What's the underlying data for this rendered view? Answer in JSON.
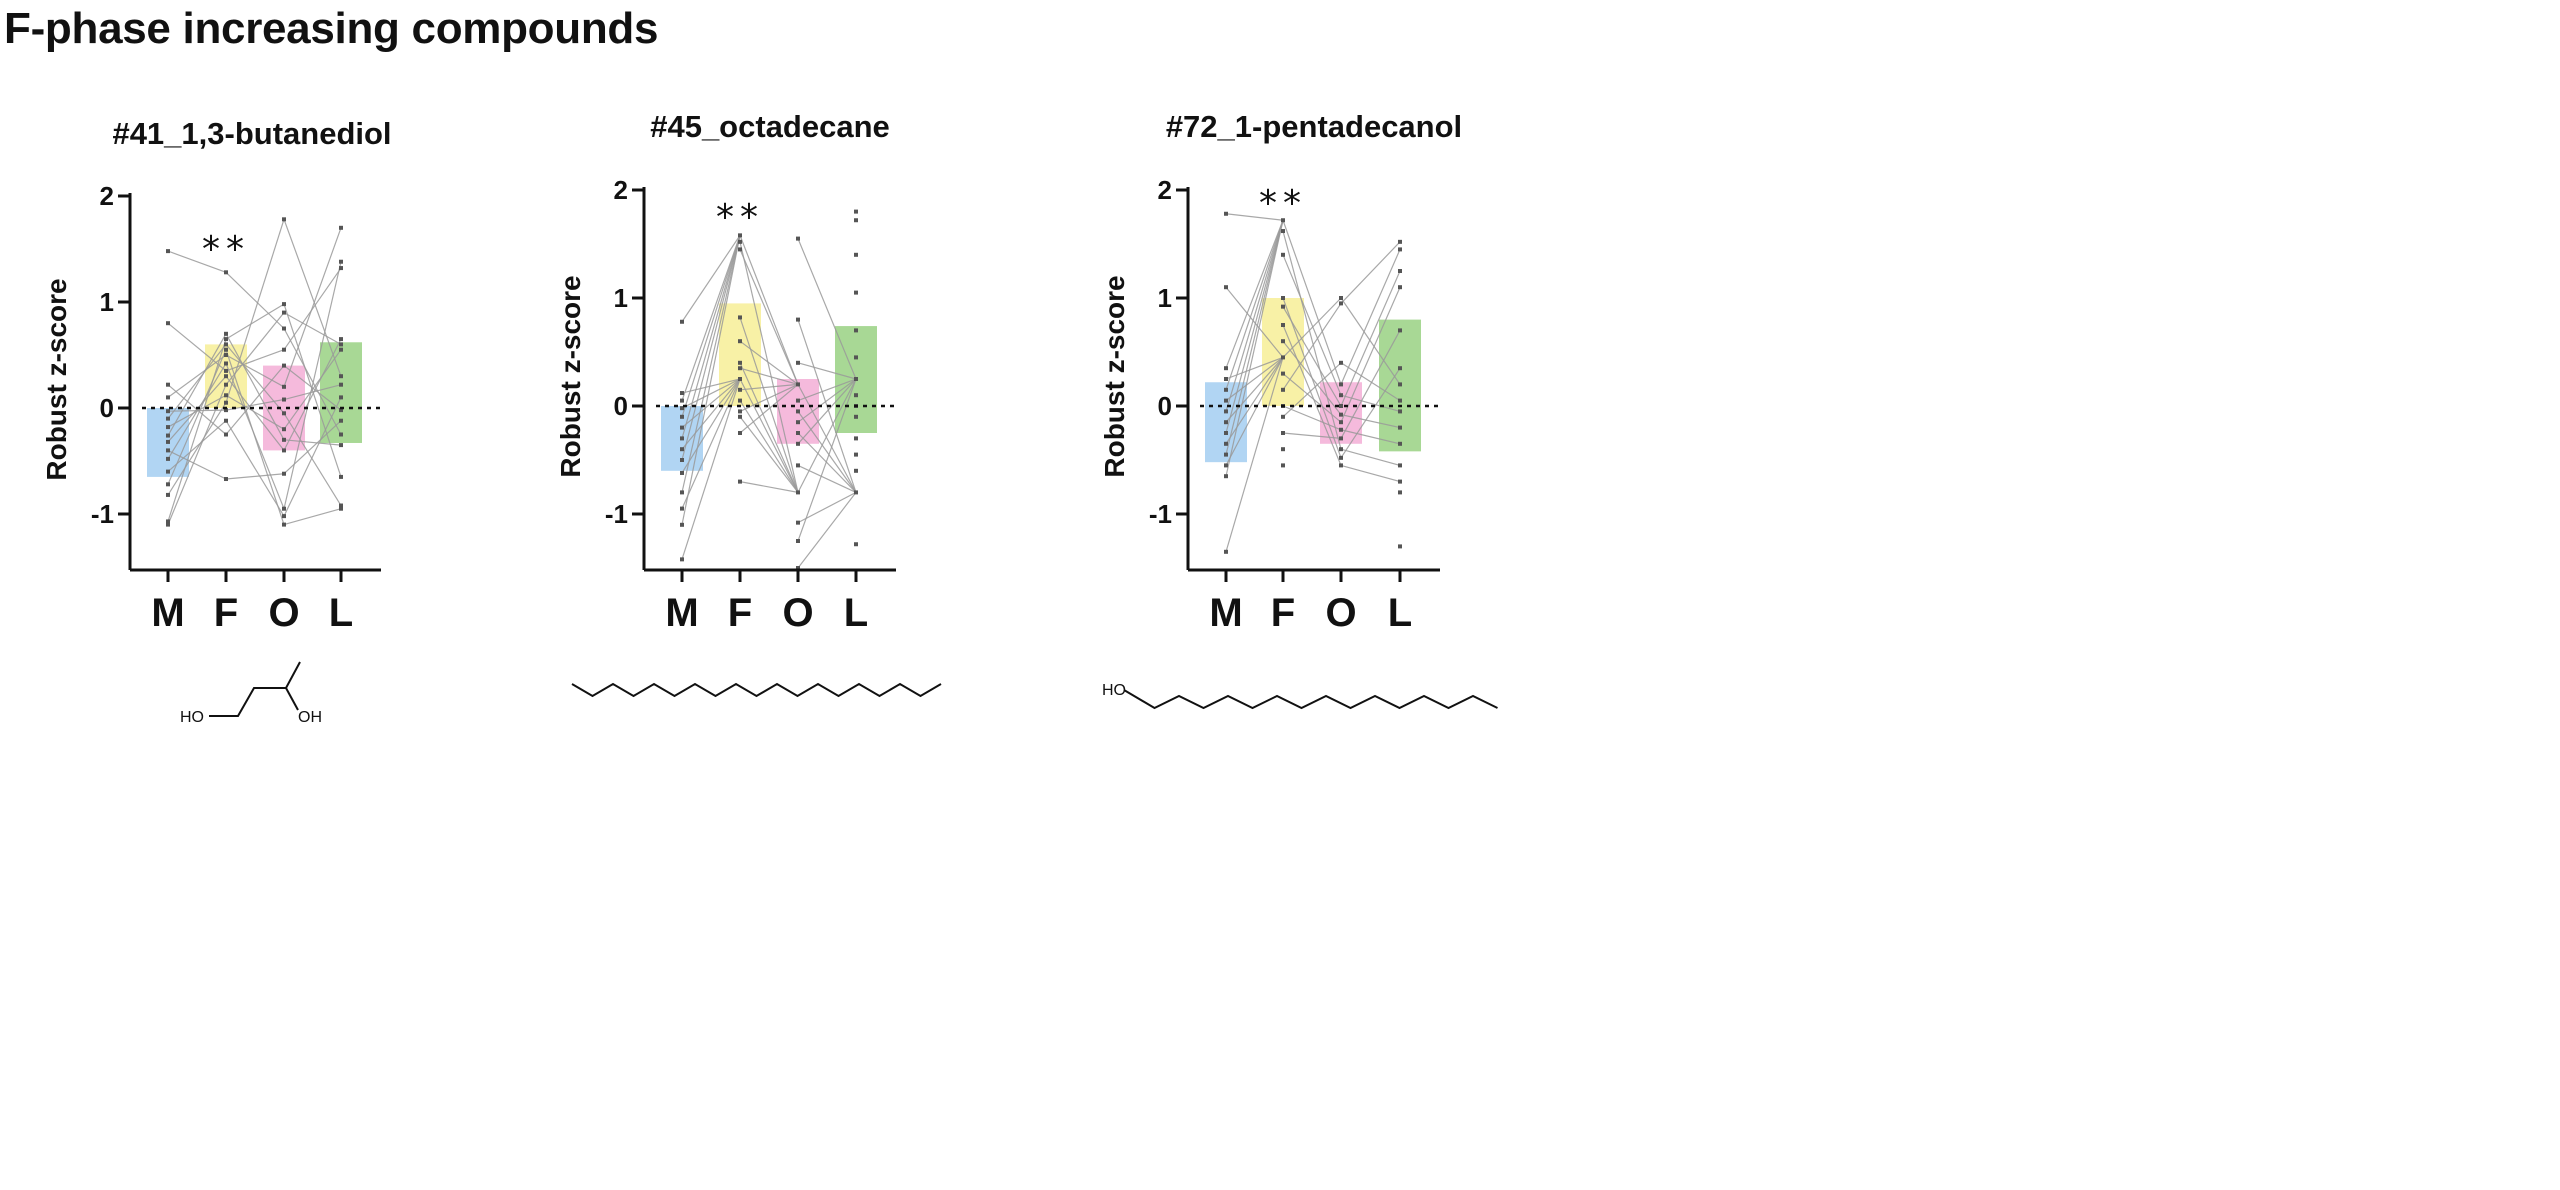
{
  "page": {
    "title": "F-phase increasing compounds"
  },
  "colors": {
    "M": "#a8d0f2",
    "F": "#f7ef9c",
    "O": "#f4b2d8",
    "L": "#9ed48a",
    "line": "#9a9a9a",
    "point": "#555555",
    "axis": "#111111"
  },
  "chart_data": [
    {
      "type": "bar",
      "title": "#41_1,3-butanediol",
      "ylabel": "Robust z-score",
      "ylim": [
        -1.5,
        2
      ],
      "yticks": [
        "2",
        "1",
        "0",
        "-1"
      ],
      "categories": [
        "M",
        "F",
        "O",
        "L"
      ],
      "bar_top": [
        0,
        0.6,
        0.4,
        0.62
      ],
      "bar_bottom": [
        -0.65,
        0,
        -0.4,
        -0.33
      ],
      "significance": {
        "category": "F",
        "label": "**",
        "y": 1.5
      },
      "points": {
        "M": [
          1.48,
          0.8,
          0.22,
          0.1,
          -0.03,
          -0.1,
          -0.18,
          -0.26,
          -0.32,
          -0.4,
          -0.48,
          -0.6,
          -0.72,
          -0.82,
          -1.07,
          -1.1
        ],
        "F": [
          1.28,
          0.7,
          0.65,
          0.6,
          0.55,
          0.5,
          0.42,
          0.35,
          0.3,
          0.22,
          0.12,
          0.05,
          -0.02,
          -0.12,
          -0.25,
          -0.67
        ],
        "O": [
          1.78,
          0.98,
          0.9,
          0.75,
          0.55,
          0.4,
          0.2,
          0.08,
          -0.05,
          -0.2,
          -0.3,
          -0.4,
          -0.62,
          -0.95,
          -1.02,
          -1.1
        ],
        "L": [
          1.7,
          1.38,
          1.32,
          0.65,
          0.6,
          0.55,
          0.3,
          0.22,
          0.1,
          -0.02,
          -0.12,
          -0.25,
          -0.35,
          -0.65,
          -0.92,
          -0.95
        ]
      },
      "molecule": {
        "name": "1,3-butanediol",
        "labels": [
          "HO",
          "OH"
        ]
      }
    },
    {
      "type": "bar",
      "title": "#45_octadecane",
      "ylabel": "Robust z-score",
      "ylim": [
        -1.5,
        2
      ],
      "yticks": [
        "2",
        "1",
        "0",
        "-1"
      ],
      "categories": [
        "M",
        "F",
        "O",
        "L"
      ],
      "bar_top": [
        0,
        0.95,
        0.25,
        0.74
      ],
      "bar_bottom": [
        -0.6,
        0,
        -0.35,
        -0.25
      ],
      "significance": {
        "category": "F",
        "label": "**",
        "y": 1.75
      },
      "points": {
        "M": [
          0.78,
          0.12,
          0.05,
          -0.02,
          -0.1,
          -0.2,
          -0.3,
          -0.4,
          -0.5,
          -0.62,
          -0.8,
          -0.95,
          -1.1,
          -1.42
        ],
        "F": [
          1.58,
          1.52,
          1.45,
          0.82,
          0.6,
          0.4,
          0.35,
          0.25,
          0.15,
          0.05,
          -0.05,
          -0.1,
          -0.25,
          -0.7
        ],
        "O": [
          1.55,
          0.8,
          0.4,
          0.2,
          0.05,
          -0.05,
          -0.15,
          -0.25,
          -0.35,
          -0.55,
          -0.8,
          -1.08,
          -1.25,
          -1.5
        ],
        "L": [
          1.8,
          1.72,
          1.4,
          1.05,
          0.7,
          0.45,
          0.25,
          0.1,
          0.0,
          -0.1,
          -0.3,
          -0.45,
          -0.6,
          -0.8,
          -1.28
        ]
      },
      "molecule": {
        "name": "octadecane",
        "labels": []
      }
    },
    {
      "type": "bar",
      "title": "#72_1-pentadecanol",
      "ylabel": "Robust z-score",
      "ylim": [
        -1.5,
        2
      ],
      "yticks": [
        "2",
        "1",
        "0",
        "-1"
      ],
      "categories": [
        "M",
        "F",
        "O",
        "L"
      ],
      "bar_top": [
        0.22,
        1.0,
        0.22,
        0.8
      ],
      "bar_bottom": [
        -0.52,
        0,
        -0.35,
        -0.42
      ],
      "significance": {
        "category": "F",
        "label": "**",
        "y": 1.88
      },
      "points": {
        "M": [
          1.78,
          1.1,
          0.35,
          0.25,
          0.15,
          0.05,
          -0.05,
          -0.15,
          -0.25,
          -0.35,
          -0.45,
          -0.55,
          -0.65,
          -1.35
        ],
        "F": [
          1.72,
          1.62,
          1.4,
          1.0,
          0.92,
          0.75,
          0.6,
          0.45,
          0.3,
          0.15,
          0.0,
          -0.1,
          -0.25,
          -0.4,
          -0.55
        ],
        "O": [
          1.0,
          0.95,
          0.4,
          0.2,
          0.1,
          0.0,
          -0.08,
          -0.15,
          -0.22,
          -0.3,
          -0.4,
          -0.48,
          -0.55
        ],
        "L": [
          1.52,
          1.45,
          1.25,
          1.1,
          0.7,
          0.35,
          0.2,
          0.05,
          -0.05,
          -0.2,
          -0.35,
          -0.55,
          -0.7,
          -0.8,
          -1.3
        ]
      },
      "molecule": {
        "name": "1-pentadecanol",
        "labels": [
          "HO"
        ]
      }
    }
  ]
}
